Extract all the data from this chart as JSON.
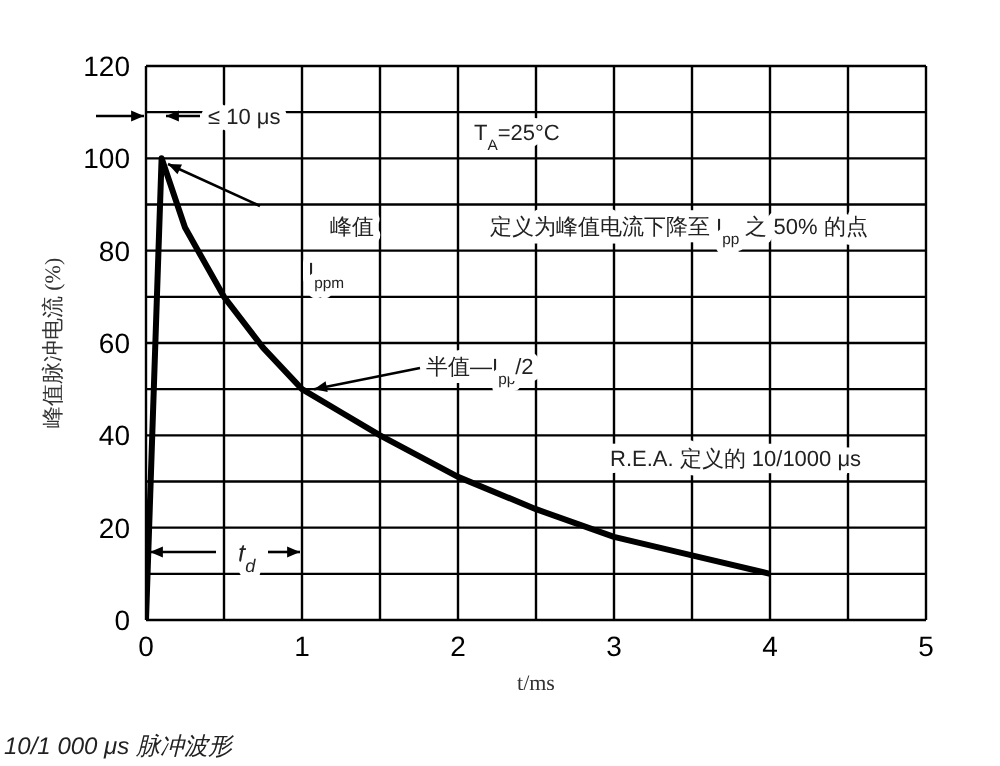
{
  "chart_data": {
    "type": "line",
    "xlabel": "t/ms",
    "ylabel": "峰值脉冲电流 (%)",
    "x": [
      0,
      0.1,
      0.25,
      0.5,
      0.75,
      1,
      1.25,
      1.5,
      2,
      2.5,
      3,
      3.5,
      4
    ],
    "series": [
      {
        "color": "#000000",
        "values": [
          0,
          100,
          85,
          70,
          59,
          50,
          45,
          40,
          31,
          24,
          18,
          14,
          10
        ]
      }
    ],
    "xlim": [
      0,
      5
    ],
    "xticks": [
      0,
      {
        "value": 0.5,
        "label": null
      },
      1,
      {
        "value": 1.5,
        "label": null
      },
      2,
      {
        "value": 2.5,
        "label": null
      },
      3,
      {
        "value": 3.5,
        "label": null
      },
      4,
      {
        "value": 4.5,
        "label": null
      },
      5
    ],
    "ylim": [
      0,
      120
    ],
    "yticks": [
      0,
      {
        "value": 10,
        "label": null
      },
      20,
      {
        "value": 30,
        "label": null
      },
      40,
      {
        "value": 50,
        "label": null
      },
      60,
      {
        "value": 70,
        "label": null
      },
      80,
      {
        "value": 90,
        "label": null
      },
      100,
      {
        "value": 110,
        "label": null
      },
      120
    ],
    "grid": true,
    "marker": "none",
    "line_style": "solid",
    "annotations": [
      "≤ 10 μs",
      "T$_{A}$=25°C",
      "峰值",
      "I$_{ppm}$",
      "定义为峰值电流下降至 I$_{pp}$ 之 50% 的点",
      {
        "text": "半值—I$_{pp}$/2",
        "x": 1,
        "y": 50
      },
      "R.E.A. 定义的 10/1000 μs",
      "t$_{d}$",
      "10/1 000 μs 脉冲波形"
    ]
  }
}
